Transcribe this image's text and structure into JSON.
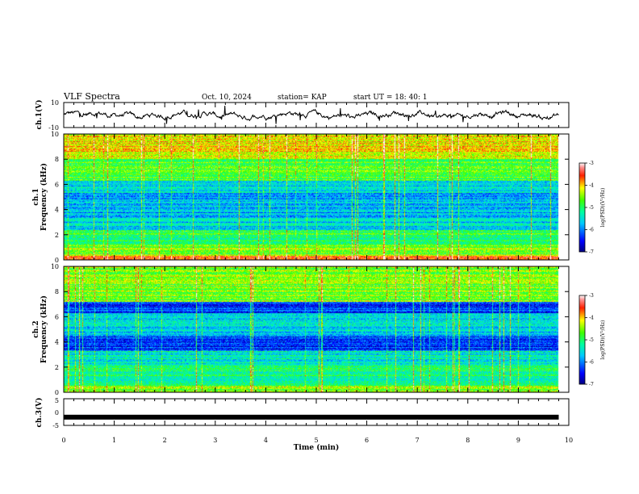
{
  "header": {
    "title": "VLF Spectra",
    "date": "Oct. 10, 2024",
    "station": "station= KAP",
    "start_time": "start  UT  =   18: 40: 1"
  },
  "chart_data": [
    {
      "type": "line",
      "panel": "ch1-waveform",
      "ylabel": "ch.1(V)",
      "ylim": [
        -10,
        10
      ],
      "y_ticks": [
        "10",
        "-10"
      ],
      "baseline_value": 0,
      "fluctuation_amplitude_v": 4
    },
    {
      "type": "heatmap",
      "panel": "ch1-spectrogram",
      "ylabel": "ch.1\nFrequency (kHz)",
      "ylim": [
        0,
        10
      ],
      "y_ticks": [
        "0",
        "2",
        "4",
        "6",
        "8",
        "10"
      ],
      "time_extent_min": 9.8,
      "colorbar": {
        "label": "log(PSD)(V²/Hz)",
        "range": [
          -7,
          -3
        ],
        "ticks": [
          "-3",
          "-4",
          "-5",
          "-6",
          "-7"
        ]
      },
      "band_levels": [
        {
          "from_khz": 0.0,
          "to_khz": 0.3,
          "level": -3.6
        },
        {
          "from_khz": 0.3,
          "to_khz": 1.2,
          "level": -4.6
        },
        {
          "from_khz": 1.2,
          "to_khz": 2.4,
          "level": -5.0
        },
        {
          "from_khz": 2.4,
          "to_khz": 3.4,
          "level": -5.6
        },
        {
          "from_khz": 3.4,
          "to_khz": 5.3,
          "level": -5.8
        },
        {
          "from_khz": 5.3,
          "to_khz": 6.3,
          "level": -5.6
        },
        {
          "from_khz": 6.3,
          "to_khz": 8.0,
          "level": -4.8
        },
        {
          "from_khz": 8.0,
          "to_khz": 10.0,
          "level": -4.1
        }
      ]
    },
    {
      "type": "heatmap",
      "panel": "ch2-spectrogram",
      "ylabel": "ch.2\nFrequency (kHz)",
      "ylim": [
        0,
        10
      ],
      "y_ticks": [
        "0",
        "2",
        "4",
        "6",
        "8",
        "10"
      ],
      "time_extent_min": 9.8,
      "colorbar": {
        "label": "log(PSD)(V²/Hz)",
        "range": [
          -7,
          -3
        ],
        "ticks": [
          "-3",
          "-4",
          "-5",
          "-6",
          "-7"
        ]
      },
      "band_levels": [
        {
          "from_khz": 0.0,
          "to_khz": 0.5,
          "level": -4.4
        },
        {
          "from_khz": 0.5,
          "to_khz": 2.2,
          "level": -5.1
        },
        {
          "from_khz": 2.2,
          "to_khz": 3.3,
          "level": -5.4
        },
        {
          "from_khz": 3.3,
          "to_khz": 4.5,
          "level": -6.3
        },
        {
          "from_khz": 4.5,
          "to_khz": 6.3,
          "level": -5.6
        },
        {
          "from_khz": 6.3,
          "to_khz": 7.2,
          "level": -6.3
        },
        {
          "from_khz": 7.2,
          "to_khz": 10.0,
          "level": -4.6
        }
      ]
    },
    {
      "type": "line",
      "panel": "ch3-waveform",
      "ylabel": "ch.3(V)",
      "ylim": [
        -5,
        5
      ],
      "y_ticks": [
        "5",
        "0",
        "-5"
      ],
      "baseline_value": -1.9,
      "time_extent_min": 9.8
    }
  ],
  "x_axis": {
    "label": "Time (min)",
    "ticks": [
      "0",
      "1",
      "2",
      "3",
      "4",
      "5",
      "6",
      "7",
      "8",
      "9",
      "10"
    ],
    "range": [
      0,
      10
    ]
  }
}
